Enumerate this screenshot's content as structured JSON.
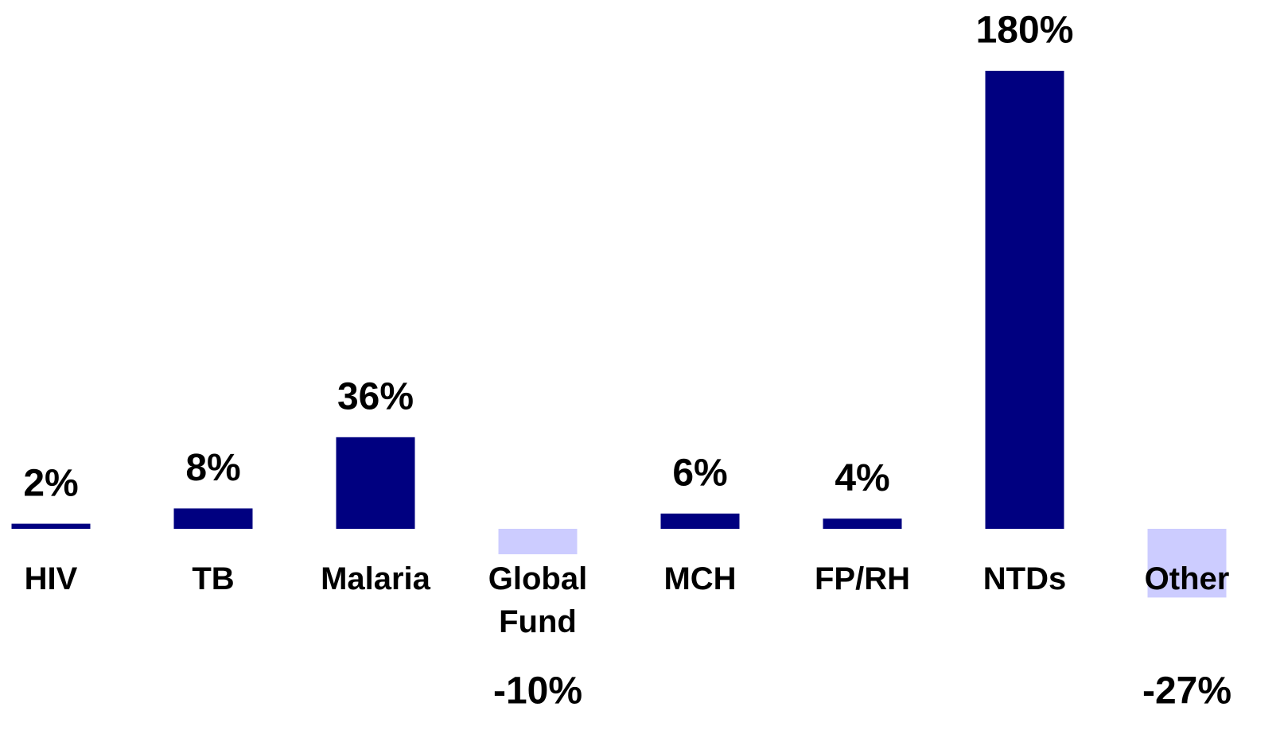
{
  "chart_data": {
    "type": "bar",
    "categories": [
      "HIV",
      "TB",
      "Malaria",
      "Global Fund",
      "MCH",
      "FP/RH",
      "NTDs",
      "Other"
    ],
    "values": [
      2,
      8,
      36,
      -10,
      6,
      4,
      180,
      -27
    ],
    "value_labels": [
      "2%",
      "8%",
      "36%",
      "-10%",
      "6%",
      "4%",
      "180%",
      "-27%"
    ],
    "colors": [
      "#000080",
      "#000080",
      "#000080",
      "#ccccff",
      "#000080",
      "#000080",
      "#000080",
      "#ccccff"
    ],
    "ylim": [
      -60,
      200
    ]
  }
}
